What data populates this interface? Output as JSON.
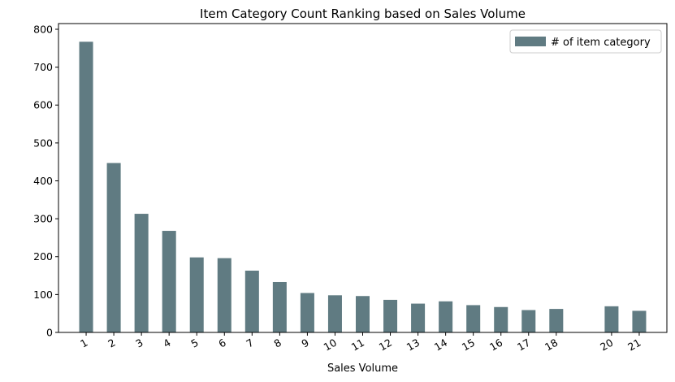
{
  "chart_data": {
    "type": "bar",
    "title": "Item Category Count Ranking based on Sales Volume",
    "xlabel": "Sales Volume",
    "ylabel": "",
    "ylim": [
      0,
      815
    ],
    "xlim": [
      0,
      22
    ],
    "yticks": [
      0,
      100,
      200,
      300,
      400,
      500,
      600,
      700,
      800
    ],
    "grid": false,
    "legend_position": "top-right",
    "bar_color": "#607b82",
    "series": [
      {
        "name": "# of item category",
        "x": [
          1,
          2,
          3,
          4,
          5,
          6,
          7,
          8,
          9,
          10,
          11,
          12,
          13,
          14,
          15,
          16,
          17,
          18,
          20,
          21
        ],
        "values": [
          767,
          447,
          313,
          268,
          198,
          196,
          163,
          133,
          104,
          98,
          96,
          86,
          76,
          82,
          72,
          67,
          59,
          62,
          69,
          57
        ]
      }
    ],
    "tick_labels": [
      "1",
      "2",
      "3",
      "4",
      "5",
      "6",
      "7",
      "8",
      "9",
      "10",
      "11",
      "12",
      "13",
      "14",
      "15",
      "16",
      "17",
      "18",
      "20",
      "21"
    ]
  }
}
